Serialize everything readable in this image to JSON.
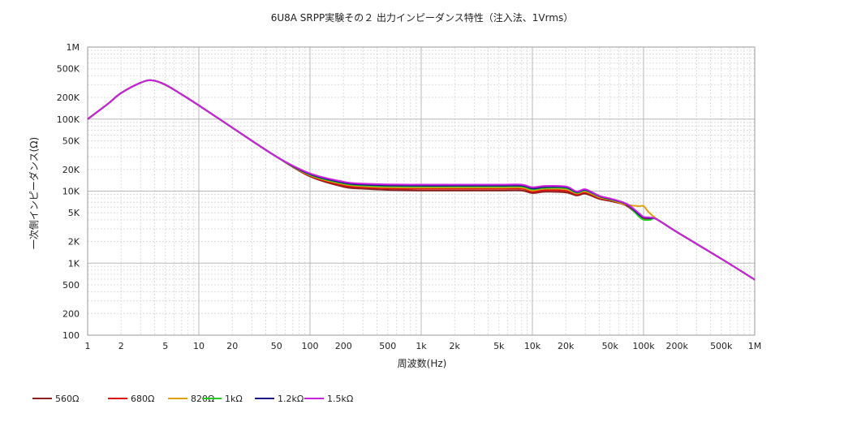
{
  "chart_data": {
    "type": "line",
    "title": "6U8A SRPP実験その２ 出力インピーダンス特性（注入法、1Vrms）",
    "xlabel": "周波数(Hz)",
    "ylabel": "一次側インピーダンス(Ω)",
    "xscale": "log",
    "yscale": "log",
    "xlim": [
      1,
      1000000
    ],
    "ylim": [
      100,
      1000000
    ],
    "grid": true,
    "legend_position": "bottom-left",
    "x_ticks": [
      {
        "value": 1,
        "label": "1"
      },
      {
        "value": 2,
        "label": "2"
      },
      {
        "value": 5,
        "label": "5"
      },
      {
        "value": 10,
        "label": "10"
      },
      {
        "value": 20,
        "label": "20"
      },
      {
        "value": 50,
        "label": "50"
      },
      {
        "value": 100,
        "label": "100"
      },
      {
        "value": 200,
        "label": "200"
      },
      {
        "value": 500,
        "label": "500"
      },
      {
        "value": 1000,
        "label": "1k"
      },
      {
        "value": 2000,
        "label": "2k"
      },
      {
        "value": 5000,
        "label": "5k"
      },
      {
        "value": 10000,
        "label": "10k"
      },
      {
        "value": 20000,
        "label": "20k"
      },
      {
        "value": 50000,
        "label": "50k"
      },
      {
        "value": 100000,
        "label": "100k"
      },
      {
        "value": 200000,
        "label": "200k"
      },
      {
        "value": 500000,
        "label": "500k"
      },
      {
        "value": 1000000,
        "label": "1M"
      }
    ],
    "y_ticks": [
      {
        "value": 100,
        "label": "100"
      },
      {
        "value": 200,
        "label": "200"
      },
      {
        "value": 500,
        "label": "500"
      },
      {
        "value": 1000,
        "label": "1K"
      },
      {
        "value": 2000,
        "label": "2K"
      },
      {
        "value": 5000,
        "label": "5K"
      },
      {
        "value": 10000,
        "label": "10K"
      },
      {
        "value": 20000,
        "label": "20K"
      },
      {
        "value": 50000,
        "label": "50K"
      },
      {
        "value": 100000,
        "label": "100K"
      },
      {
        "value": 200000,
        "label": "200K"
      },
      {
        "value": 500000,
        "label": "500K"
      },
      {
        "value": 1000000,
        "label": "1M"
      }
    ],
    "series": [
      {
        "name": "560Ω",
        "color": "#8b2020",
        "x": [
          1,
          1.5,
          2,
          3,
          3.8,
          5,
          7,
          10,
          20,
          50,
          100,
          200,
          300,
          500,
          1000,
          2000,
          5000,
          8000,
          10000,
          13000,
          20000,
          25000,
          30000,
          40000,
          50000,
          70000,
          90000,
          100000,
          115000,
          130000,
          200000,
          500000,
          1000000
        ],
        "y": [
          100000,
          160000,
          230000,
          320000,
          345000,
          300000,
          220000,
          155000,
          76000,
          30000,
          16000,
          11500,
          10800,
          10400,
          10200,
          10200,
          10200,
          10200,
          9400,
          9800,
          9600,
          8700,
          9200,
          7800,
          7300,
          6300,
          4600,
          4100,
          4100,
          4100,
          2700,
          1150,
          590
        ]
      },
      {
        "name": "680Ω",
        "color": "#dd1111",
        "x": [
          1,
          1.5,
          2,
          3,
          3.8,
          5,
          7,
          10,
          20,
          50,
          100,
          200,
          300,
          500,
          1000,
          2000,
          5000,
          8000,
          10000,
          13000,
          20000,
          25000,
          30000,
          40000,
          50000,
          70000,
          90000,
          100000,
          115000,
          130000,
          200000,
          500000,
          1000000
        ],
        "y": [
          100000,
          160000,
          230000,
          320000,
          345000,
          300000,
          220000,
          155000,
          76000,
          30000,
          16300,
          12000,
          11300,
          10900,
          10800,
          10800,
          10800,
          10800,
          9800,
          10300,
          10100,
          9000,
          9600,
          8000,
          7500,
          6400,
          4700,
          4200,
          4150,
          4100,
          2700,
          1150,
          590
        ]
      },
      {
        "name": "820Ω",
        "color": "#e0a010",
        "x": [
          1,
          1.5,
          2,
          3,
          3.8,
          5,
          7,
          10,
          20,
          50,
          100,
          200,
          300,
          500,
          1000,
          2000,
          5000,
          8000,
          10000,
          13000,
          20000,
          25000,
          30000,
          40000,
          50000,
          70000,
          90000,
          100000,
          110000,
          130000,
          200000,
          500000,
          1000000
        ],
        "y": [
          100000,
          160000,
          230000,
          320000,
          345000,
          300000,
          220000,
          155000,
          76000,
          30000,
          16600,
          12500,
          11700,
          11300,
          11200,
          11200,
          11200,
          11200,
          10200,
          10800,
          10600,
          9300,
          9900,
          8200,
          7600,
          6500,
          6200,
          6200,
          5200,
          4150,
          2700,
          1150,
          590
        ]
      },
      {
        "name": "1kΩ",
        "color": "#22cc22",
        "x": [
          1,
          1.5,
          2,
          3,
          3.8,
          5,
          7,
          10,
          20,
          50,
          100,
          200,
          300,
          500,
          1000,
          2000,
          5000,
          8000,
          10000,
          13000,
          20000,
          25000,
          30000,
          40000,
          50000,
          70000,
          90000,
          100000,
          115000,
          130000,
          200000,
          500000,
          1000000
        ],
        "y": [
          100000,
          160000,
          230000,
          320000,
          345000,
          300000,
          220000,
          155000,
          76000,
          30000,
          16900,
          12800,
          12000,
          11700,
          11600,
          11600,
          11600,
          11600,
          10600,
          11100,
          11000,
          9500,
          10200,
          8400,
          7700,
          6600,
          4500,
          4000,
          4000,
          4100,
          2700,
          1150,
          590
        ]
      },
      {
        "name": "1.2kΩ",
        "color": "#1a1a80",
        "x": [
          1,
          1.5,
          2,
          3,
          3.8,
          5,
          7,
          10,
          20,
          50,
          100,
          200,
          300,
          500,
          1000,
          2000,
          5000,
          8000,
          10000,
          13000,
          20000,
          25000,
          30000,
          40000,
          50000,
          70000,
          90000,
          100000,
          115000,
          130000,
          200000,
          500000,
          1000000
        ],
        "y": [
          100000,
          160000,
          230000,
          320000,
          345000,
          300000,
          220000,
          155000,
          76000,
          30000,
          17200,
          13100,
          12300,
          12000,
          11900,
          11900,
          11900,
          11900,
          10900,
          11400,
          11300,
          9700,
          10400,
          8500,
          7800,
          6600,
          4800,
          4300,
          4200,
          4100,
          2700,
          1150,
          590
        ]
      },
      {
        "name": "1.5kΩ",
        "color": "#cc22dd",
        "x": [
          1,
          1.5,
          2,
          3,
          3.8,
          5,
          7,
          10,
          20,
          50,
          100,
          200,
          300,
          500,
          1000,
          2000,
          5000,
          8000,
          10000,
          13000,
          20000,
          25000,
          30000,
          40000,
          50000,
          70000,
          90000,
          100000,
          115000,
          130000,
          200000,
          500000,
          1000000
        ],
        "y": [
          100000,
          160000,
          230000,
          320000,
          345000,
          300000,
          220000,
          155000,
          76000,
          30000,
          17600,
          13500,
          12700,
          12400,
          12300,
          12300,
          12300,
          12300,
          11300,
          11800,
          11600,
          9900,
          10600,
          8600,
          7900,
          6700,
          5000,
          4400,
          4300,
          4100,
          2700,
          1150,
          590
        ]
      }
    ]
  }
}
